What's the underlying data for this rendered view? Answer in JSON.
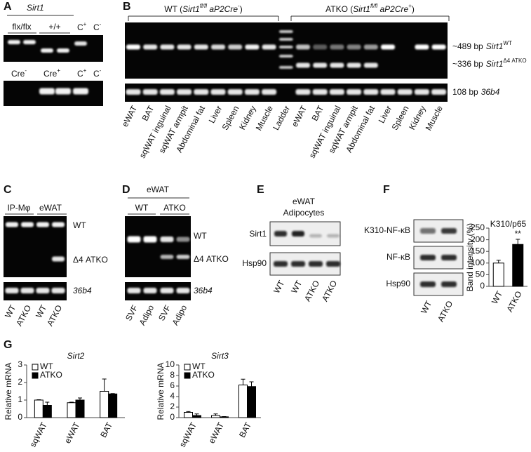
{
  "panel_a": {
    "letter": "A",
    "gene": "Sirt1",
    "genotypes": [
      "flx/flx",
      "+/+"
    ],
    "controls": [
      {
        "text": "C",
        "sup": "+"
      },
      {
        "text": "C",
        "sup": "-"
      }
    ],
    "cre": [
      {
        "text": "Cre",
        "sup": "-"
      },
      {
        "text": "Cre",
        "sup": "+"
      }
    ]
  },
  "panel_b": {
    "letter": "B",
    "groups": [
      {
        "parts": [
          "WT (",
          "Sirt1",
          "fl/fl",
          " aP2Cre",
          "-",
          ")"
        ]
      },
      {
        "parts": [
          "ATKO (",
          "Sirt1",
          "fl/fl",
          " aP2Cre",
          "+",
          ")"
        ]
      }
    ],
    "bands": [
      {
        "size": "~489 bp",
        "gene": "Sirt1",
        "allele": "WT"
      },
      {
        "size": "~336 bp",
        "gene": "Sirt1",
        "allele": "Δ4 ATKO"
      },
      {
        "size": "108 bp",
        "gene": "36b4"
      }
    ],
    "lanes": [
      "eWAT",
      "BAT",
      "sqWAT inguinal",
      "sqWAT armpit",
      "Abdominal fat",
      "Liver",
      "Spleen",
      "Kidney",
      "Muscle",
      "Ladder",
      "eWAT",
      "BAT",
      "sqWAT inguinal",
      "sqWAT armpit",
      "Abdominal fat",
      "Liver",
      "Spleen",
      "Kidney",
      "Muscle"
    ]
  },
  "panel_c": {
    "letter": "C",
    "groups": [
      "IP-Mφ",
      "eWAT"
    ],
    "bands": [
      "WT",
      "Δ4 ATKO",
      "36b4"
    ],
    "lanes": [
      "WT",
      "ATKO",
      "WT",
      "ATKO"
    ]
  },
  "panel_d": {
    "letter": "D",
    "tissue": "eWAT",
    "groups": [
      "WT",
      "ATKO"
    ],
    "bands": [
      "WT",
      "Δ4 ATKO",
      "36b4"
    ],
    "lanes": [
      "SVF",
      "Adipo",
      "SVF",
      "Adipo"
    ]
  },
  "panel_e": {
    "letter": "E",
    "header": [
      "eWAT",
      "Adipocytes"
    ],
    "proteins": [
      "Sirt1",
      "Hsp90"
    ],
    "lanes": [
      "WT",
      "WT",
      "ATKO",
      "ATKO"
    ]
  },
  "panel_f": {
    "letter": "F",
    "proteins": [
      "K310-NF-κB",
      "NF-κB",
      "Hsp90"
    ],
    "lanes": [
      "WT",
      "ATKO"
    ]
  },
  "panel_g": {
    "letter": "G"
  },
  "chart_data": [
    {
      "type": "bar",
      "title": "K310/p65",
      "y_label": "Band intensity (%)",
      "categories": [
        "WT",
        "ATKO"
      ],
      "values": [
        100,
        180
      ],
      "errors": [
        12,
        22
      ],
      "colors": [
        "#ffffff",
        "#000000"
      ],
      "annotation": "**",
      "ylim": [
        0,
        250
      ],
      "yticks": [
        0,
        50,
        100,
        150,
        200,
        250
      ]
    },
    {
      "type": "bar",
      "title": "Sirt2",
      "y_label": "Relative mRNA",
      "categories": [
        "sqWAT",
        "eWAT",
        "BAT"
      ],
      "series": [
        {
          "name": "WT",
          "color": "#ffffff",
          "values": [
            1.0,
            0.85,
            1.5
          ],
          "errors": [
            0.02,
            0.03,
            0.7
          ]
        },
        {
          "name": "ATKO",
          "color": "#000000",
          "values": [
            0.7,
            1.0,
            1.35
          ],
          "errors": [
            0.18,
            0.12,
            0.02
          ]
        }
      ],
      "ylim": [
        0,
        3
      ],
      "yticks": [
        0,
        1,
        2,
        3
      ],
      "legend": "upper left"
    },
    {
      "type": "bar",
      "title": "Sirt3",
      "y_label": "Relative mRNA",
      "categories": [
        "sqWAT",
        "eWAT",
        "BAT"
      ],
      "series": [
        {
          "name": "WT",
          "color": "#ffffff",
          "values": [
            1.0,
            0.4,
            6.2
          ],
          "errors": [
            0.15,
            0.3,
            1.1
          ]
        },
        {
          "name": "ATKO",
          "color": "#000000",
          "values": [
            0.4,
            0.15,
            5.9
          ],
          "errors": [
            0.3,
            0.05,
            0.9
          ]
        }
      ],
      "ylim": [
        0,
        10
      ],
      "yticks": [
        0,
        2,
        4,
        6,
        8,
        10
      ],
      "legend": "upper left"
    }
  ]
}
